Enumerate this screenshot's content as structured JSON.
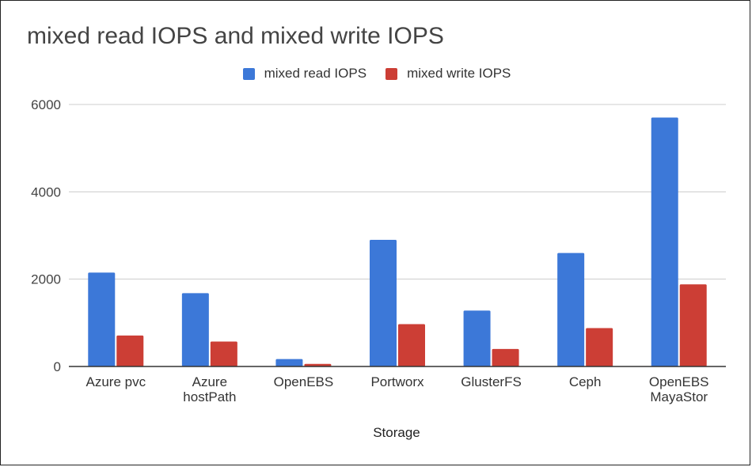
{
  "chart_data": {
    "type": "bar",
    "title": "mixed read IOPS and mixed write IOPS",
    "xlabel": "Storage",
    "ylabel": "",
    "categories": [
      "Azure pvc",
      "Azure hostPath",
      "OpenEBS",
      "Portworx",
      "GlusterFS",
      "Ceph",
      "OpenEBS MayaStor"
    ],
    "category_lines": [
      [
        "Azure pvc"
      ],
      [
        "Azure",
        "hostPath"
      ],
      [
        "OpenEBS"
      ],
      [
        "Portworx"
      ],
      [
        "GlusterFS"
      ],
      [
        "Ceph"
      ],
      [
        "OpenEBS",
        "MayaStor"
      ]
    ],
    "series": [
      {
        "name": "mixed read IOPS",
        "color": "#3c78d8",
        "values": [
          2150,
          1680,
          170,
          2900,
          1280,
          2600,
          5700
        ]
      },
      {
        "name": "mixed write IOPS",
        "color": "#cc3e35",
        "values": [
          710,
          570,
          60,
          970,
          400,
          880,
          1880
        ]
      }
    ],
    "ylim": [
      0,
      6000
    ],
    "yticks": [
      0,
      2000,
      4000,
      6000
    ],
    "grid": true,
    "legend_position": "top"
  }
}
